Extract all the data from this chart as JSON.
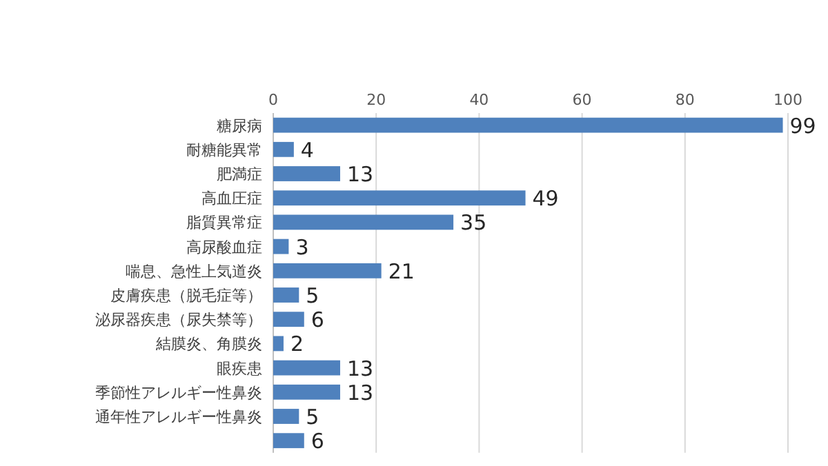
{
  "chart_data": {
    "type": "bar",
    "orientation": "horizontal",
    "categories": [
      "糖尿病",
      "耐糖能異常",
      "肥満症",
      "高血圧症",
      "脂質異常症",
      "高尿酸血症",
      "喘息、急性上気道炎",
      "皮膚疾患（脱毛症等）",
      "泌尿器疾患（尿失禁等）",
      "結膜炎、角膜炎",
      "眼疾患",
      "季節性アレルギー性鼻炎",
      "通年性アレルギー性鼻炎",
      null
    ],
    "values": [
      99,
      4,
      13,
      49,
      35,
      3,
      21,
      5,
      6,
      2,
      13,
      13,
      5,
      6
    ],
    "color": "#4f81bd",
    "xlim": [
      0,
      100
    ],
    "xticks": [
      0,
      20,
      40,
      60,
      80,
      100
    ],
    "grid": "x",
    "data_labels": true
  }
}
